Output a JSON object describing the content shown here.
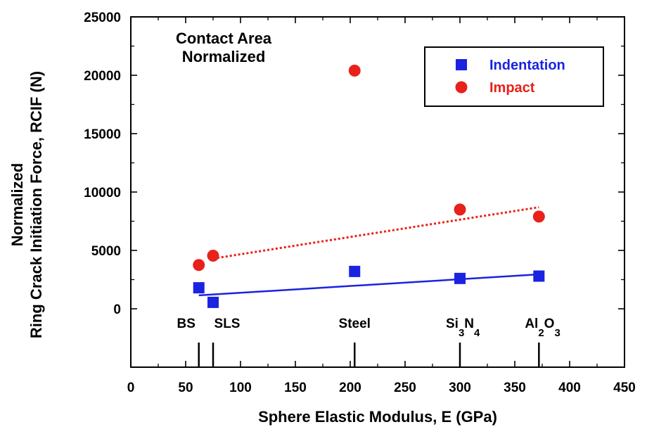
{
  "chart_data": {
    "type": "scatter",
    "title": "Contact Area\nNormalized",
    "xlabel": "Sphere Elastic Modulus, E  (GPa)",
    "ylabel": "Normalized\nRing Crack Initiation Force, RCIF  (N)",
    "xlim": [
      0,
      450
    ],
    "ylim": [
      -5000,
      25000
    ],
    "xticks": [
      0,
      50,
      100,
      150,
      200,
      250,
      300,
      350,
      400,
      450
    ],
    "yticks": [
      0,
      5000,
      10000,
      15000,
      20000,
      25000
    ],
    "grid": false,
    "legend_position": "top-right",
    "series": [
      {
        "name": "Indentation",
        "marker": "square",
        "color": "#1a23e0",
        "points": [
          {
            "x": 62,
            "y": 1800
          },
          {
            "x": 75,
            "y": 550
          },
          {
            "x": 204,
            "y": 3200
          },
          {
            "x": 300,
            "y": 2600
          },
          {
            "x": 372,
            "y": 2800
          }
        ],
        "fit": {
          "style": "solid",
          "x": [
            62,
            372
          ],
          "y": [
            1150,
            2950
          ]
        }
      },
      {
        "name": "Impact",
        "marker": "circle",
        "color": "#e8211a",
        "points": [
          {
            "x": 62,
            "y": 3750
          },
          {
            "x": 75,
            "y": 4550
          },
          {
            "x": 204,
            "y": 20400
          },
          {
            "x": 300,
            "y": 8500
          },
          {
            "x": 372,
            "y": 7900
          }
        ],
        "fit": {
          "style": "dotted",
          "x": [
            75,
            372
          ],
          "y": [
            4300,
            8700
          ]
        }
      }
    ],
    "materials": [
      {
        "label": "BS",
        "x": 62
      },
      {
        "label": "SLS",
        "x": 75
      },
      {
        "label": "Steel",
        "x": 204
      },
      {
        "label": "Si3N4",
        "x": 300,
        "base": "Si",
        "subs": [
          "3",
          "4"
        ],
        "mid": "N"
      },
      {
        "label": "Al2O3",
        "x": 372,
        "base": "Al",
        "subs": [
          "2",
          "3"
        ],
        "mid": "O"
      }
    ]
  }
}
